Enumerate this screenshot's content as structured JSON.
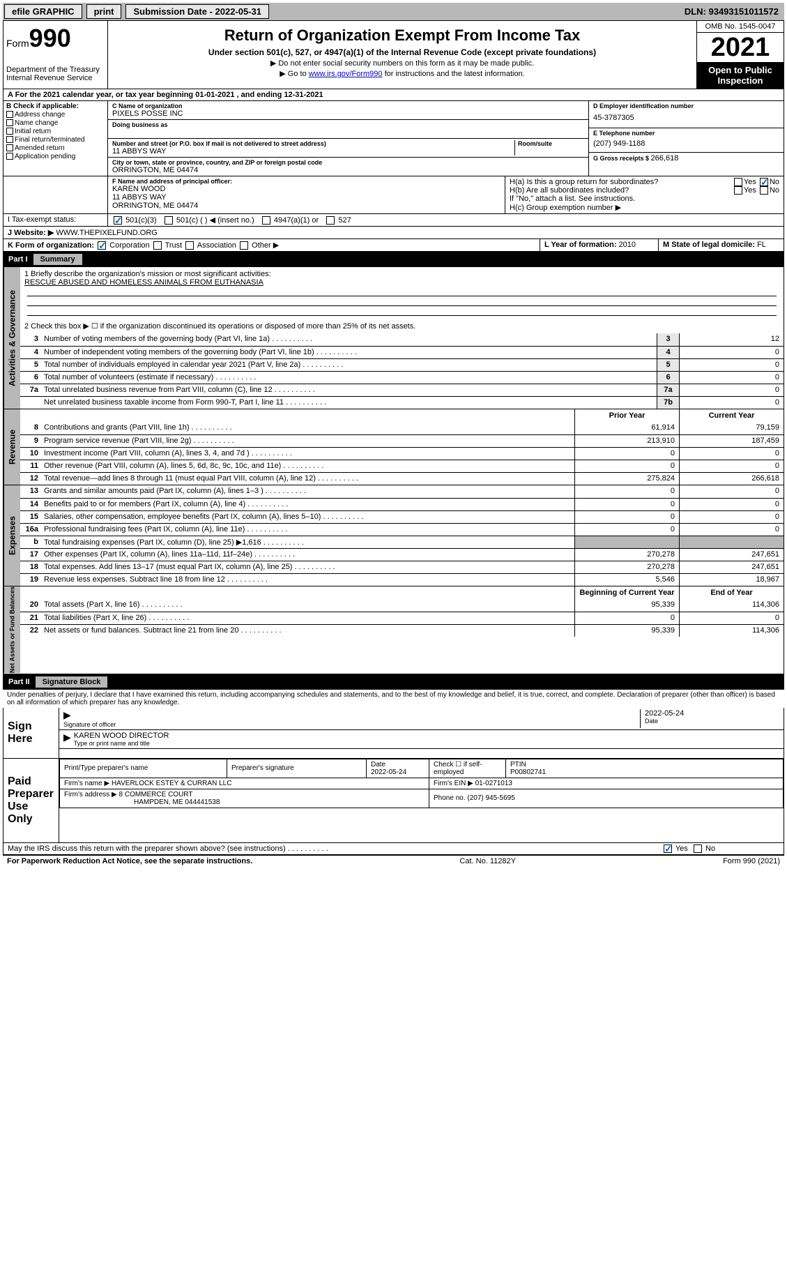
{
  "topbar": {
    "efile": "efile GRAPHIC",
    "print": "print",
    "submission_label": "Submission Date - ",
    "submission_date": "2022-05-31",
    "dln_label": "DLN: ",
    "dln": "93493151011572"
  },
  "header": {
    "form_word": "Form",
    "form_num": "990",
    "dept": "Department of the Treasury",
    "irs": "Internal Revenue Service",
    "title": "Return of Organization Exempt From Income Tax",
    "subtitle": "Under section 501(c), 527, or 4947(a)(1) of the Internal Revenue Code (except private foundations)",
    "note1": "▶ Do not enter social security numbers on this form as it may be made public.",
    "note2_pre": "▶ Go to ",
    "note2_link": "www.irs.gov/Form990",
    "note2_post": " for instructions and the latest information.",
    "omb": "OMB No. 1545-0047",
    "year": "2021",
    "open1": "Open to Public",
    "open2": "Inspection"
  },
  "period": {
    "a_label": "A For the 2021 calendar year, or tax year beginning ",
    "begin": "01-01-2021",
    "mid": " , and ending ",
    "end": "12-31-2021"
  },
  "section_b": {
    "label": "B Check if applicable:",
    "items": [
      "Address change",
      "Name change",
      "Initial return",
      "Final return/terminated",
      "Amended return",
      "Application pending"
    ]
  },
  "section_c": {
    "name_label": "C Name of organization",
    "name": "PIXELS POSSE INC",
    "dba_label": "Doing business as",
    "street_label": "Number and street (or P.O. box if mail is not delivered to street address)",
    "room_label": "Room/suite",
    "street": "11 ABBYS WAY",
    "city_label": "City or town, state or province, country, and ZIP or foreign postal code",
    "city": "ORRINGTON, ME  04474"
  },
  "section_d": {
    "label": "D Employer identification number",
    "val": "45-3787305"
  },
  "section_e": {
    "label": "E Telephone number",
    "val": "(207) 949-1188"
  },
  "section_g": {
    "label": "G Gross receipts $ ",
    "val": "266,618"
  },
  "section_f": {
    "label": "F Name and address of principal officer:",
    "name": "KAREN WOOD",
    "street": "11 ABBYS WAY",
    "city": "ORRINGTON, ME  04474"
  },
  "section_h": {
    "a": "H(a)  Is this a group return for subordinates?",
    "b": "H(b)  Are all subordinates included?",
    "b_note": "If \"No,\" attach a list. See instructions.",
    "c": "H(c)  Group exemption number ▶",
    "yes": "Yes",
    "no": "No"
  },
  "section_i": {
    "label": "I   Tax-exempt status:",
    "opts": [
      "501(c)(3)",
      "501(c) (  ) ◀ (insert no.)",
      "4947(a)(1) or",
      "527"
    ]
  },
  "section_j": {
    "label": "J   Website: ▶ ",
    "val": "WWW.THEPIXELFUND.ORG"
  },
  "section_k": {
    "label": "K Form of organization:",
    "opts": [
      "Corporation",
      "Trust",
      "Association",
      "Other ▶"
    ]
  },
  "section_l": {
    "label": "L Year of formation: ",
    "val": "2010"
  },
  "section_m": {
    "label": "M State of legal domicile: ",
    "val": "FL"
  },
  "part1": {
    "label": "Part I",
    "title": "Summary",
    "line1_label": "1  Briefly describe the organization's mission or most significant activities:",
    "line1_val": "RESCUE ABUSED AND HOMELESS ANIMALS FROM EUTHANASIA",
    "line2": "2   Check this box ▶ ☐  if the organization discontinued its operations or disposed of more than 25% of its net assets.",
    "prior_year": "Prior Year",
    "current_year": "Current Year",
    "begin_year": "Beginning of Current Year",
    "end_year": "End of Year",
    "sidebar_act": "Activities & Governance",
    "sidebar_rev": "Revenue",
    "sidebar_exp": "Expenses",
    "sidebar_net": "Net Assets or Fund Balances",
    "rows_gov": [
      {
        "n": "3",
        "d": "Number of voting members of the governing body (Part VI, line 1a)",
        "c": "3",
        "v": "12"
      },
      {
        "n": "4",
        "d": "Number of independent voting members of the governing body (Part VI, line 1b)",
        "c": "4",
        "v": "0"
      },
      {
        "n": "5",
        "d": "Total number of individuals employed in calendar year 2021 (Part V, line 2a)",
        "c": "5",
        "v": "0"
      },
      {
        "n": "6",
        "d": "Total number of volunteers (estimate if necessary)",
        "c": "6",
        "v": "0"
      },
      {
        "n": "7a",
        "d": "Total unrelated business revenue from Part VIII, column (C), line 12",
        "c": "7a",
        "v": "0"
      },
      {
        "n": "",
        "d": "Net unrelated business taxable income from Form 990-T, Part I, line 11",
        "c": "7b",
        "v": "0"
      }
    ],
    "rows_rev": [
      {
        "n": "8",
        "d": "Contributions and grants (Part VIII, line 1h)",
        "p": "61,914",
        "c": "79,159"
      },
      {
        "n": "9",
        "d": "Program service revenue (Part VIII, line 2g)",
        "p": "213,910",
        "c": "187,459"
      },
      {
        "n": "10",
        "d": "Investment income (Part VIII, column (A), lines 3, 4, and 7d )",
        "p": "0",
        "c": "0"
      },
      {
        "n": "11",
        "d": "Other revenue (Part VIII, column (A), lines 5, 6d, 8c, 9c, 10c, and 11e)",
        "p": "0",
        "c": "0"
      },
      {
        "n": "12",
        "d": "Total revenue—add lines 8 through 11 (must equal Part VIII, column (A), line 12)",
        "p": "275,824",
        "c": "266,618"
      }
    ],
    "rows_exp": [
      {
        "n": "13",
        "d": "Grants and similar amounts paid (Part IX, column (A), lines 1–3 )",
        "p": "0",
        "c": "0"
      },
      {
        "n": "14",
        "d": "Benefits paid to or for members (Part IX, column (A), line 4)",
        "p": "0",
        "c": "0"
      },
      {
        "n": "15",
        "d": "Salaries, other compensation, employee benefits (Part IX, column (A), lines 5–10)",
        "p": "0",
        "c": "0"
      },
      {
        "n": "16a",
        "d": "Professional fundraising fees (Part IX, column (A), line 11e)",
        "p": "0",
        "c": "0"
      },
      {
        "n": "b",
        "d": "Total fundraising expenses (Part IX, column (D), line 25) ▶1,616",
        "p": "",
        "c": "",
        "shaded": true
      },
      {
        "n": "17",
        "d": "Other expenses (Part IX, column (A), lines 11a–11d, 11f–24e)",
        "p": "270,278",
        "c": "247,651"
      },
      {
        "n": "18",
        "d": "Total expenses. Add lines 13–17 (must equal Part IX, column (A), line 25)",
        "p": "270,278",
        "c": "247,651"
      },
      {
        "n": "19",
        "d": "Revenue less expenses. Subtract line 18 from line 12",
        "p": "5,546",
        "c": "18,967"
      }
    ],
    "rows_net": [
      {
        "n": "20",
        "d": "Total assets (Part X, line 16)",
        "p": "95,339",
        "c": "114,306"
      },
      {
        "n": "21",
        "d": "Total liabilities (Part X, line 26)",
        "p": "0",
        "c": "0"
      },
      {
        "n": "22",
        "d": "Net assets or fund balances. Subtract line 21 from line 20",
        "p": "95,339",
        "c": "114,306"
      }
    ]
  },
  "part2": {
    "label": "Part II",
    "title": "Signature Block",
    "penalty": "Under penalties of perjury, I declare that I have examined this return, including accompanying schedules and statements, and to the best of my knowledge and belief, it is true, correct, and complete. Declaration of preparer (other than officer) is based on all information of which preparer has any knowledge.",
    "sign_here": "Sign Here",
    "sig_officer": "Signature of officer",
    "date": "Date",
    "sig_date": "2022-05-24",
    "name_title": "KAREN WOOD  DIRECTOR",
    "name_title_label": "Type or print name and title",
    "paid_prep": "Paid Preparer Use Only",
    "prep_name_label": "Print/Type preparer's name",
    "prep_sig_label": "Preparer's signature",
    "prep_date_label": "Date",
    "prep_date": "2022-05-24",
    "self_emp": "Check ☐ if self-employed",
    "ptin_label": "PTIN",
    "ptin": "P00802741",
    "firm_name_label": "Firm's name    ▶ ",
    "firm_name": "HAVERLOCK ESTEY & CURRAN LLC",
    "firm_ein_label": "Firm's EIN ▶ ",
    "firm_ein": "01-0271013",
    "firm_addr_label": "Firm's address ▶ ",
    "firm_addr": "8 COMMERCE COURT",
    "firm_city": "HAMPDEN, ME  044441538",
    "phone_label": "Phone no. ",
    "phone": "(207) 945-5695",
    "discuss": "May the IRS discuss this return with the preparer shown above? (see instructions)"
  },
  "footer": {
    "paperwork": "For Paperwork Reduction Act Notice, see the separate instructions.",
    "cat": "Cat. No. 11282Y",
    "form": "Form 990 (2021)"
  }
}
